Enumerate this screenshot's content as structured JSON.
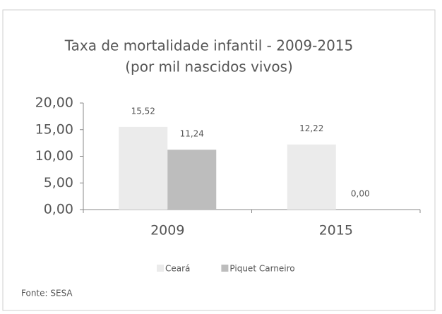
{
  "chart_data": {
    "type": "bar",
    "title": "Taxa de mortalidade infantil - 2009-2015",
    "subtitle": "(por mil nascidos vivos)",
    "categories": [
      "2009",
      "2015"
    ],
    "series": [
      {
        "name": "Ceará",
        "color": "#ebebeb",
        "values": [
          15.52,
          12.22
        ],
        "value_labels": [
          "15,52",
          "12,22"
        ]
      },
      {
        "name": "Piquet Carneiro",
        "color": "#bdbdbd",
        "values": [
          11.24,
          0
        ],
        "value_labels": [
          "11,24",
          "0,00"
        ]
      }
    ],
    "ylim": [
      0,
      20
    ],
    "yticks": [
      {
        "value": 0,
        "label": "0,00"
      },
      {
        "value": 5,
        "label": "5,00"
      },
      {
        "value": 10,
        "label": "10,00"
      },
      {
        "value": 15,
        "label": "15,00"
      },
      {
        "value": 20,
        "label": "20,00"
      }
    ],
    "legend": "bottom",
    "source": "Fonte: SESA"
  }
}
